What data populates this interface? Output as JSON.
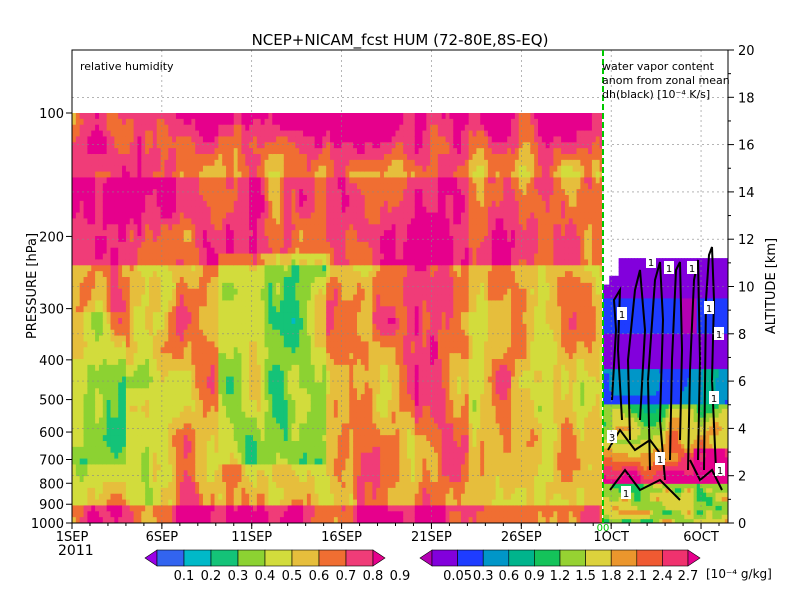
{
  "chart_data": {
    "type": "heatmap",
    "title": "NCEP+NICAM_fcst HUM (72-80E,8S-EQ)",
    "left_panel": {
      "label": "relative humidity",
      "xlabel_year": "2011",
      "x_ticks": [
        "1SEP",
        "6SEP",
        "11SEP",
        "16SEP",
        "21SEP",
        "26SEP",
        "1OCT"
      ],
      "y_ticks_pressure": [
        "100",
        "200",
        "300",
        "400",
        "500",
        "600",
        "700",
        "800",
        "900",
        "1000"
      ],
      "ylabel": "PRESSURE [hPa]",
      "pressure_range": [
        1000,
        100
      ],
      "levels": [
        0.1,
        0.2,
        0.3,
        0.4,
        0.5,
        0.6,
        0.7,
        0.8,
        0.9
      ],
      "level_labels": [
        "0.1",
        "0.2",
        "0.3",
        "0.4",
        "0.5",
        "0.6",
        "0.7",
        "0.8",
        "0.9"
      ],
      "colors": [
        "#9a00e6",
        "#3264f0",
        "#00b9c8",
        "#14c378",
        "#8cd232",
        "#d2dc3c",
        "#e6be3c",
        "#f06e32",
        "#f03c78",
        "#e6008c"
      ]
    },
    "right_panel": {
      "label_lines": [
        "water vapor content",
        "anom from zonal mean",
        "dh(black) [10⁻⁴ K/s]"
      ],
      "x_ticks": [
        "1OCT",
        "6OCT"
      ],
      "y_ticks_altitude": [
        "0",
        "2",
        "4",
        "6",
        "8",
        "10",
        "12",
        "14",
        "16",
        "18",
        "20"
      ],
      "ylabel": "ALTITUDE [km]",
      "altitude_range": [
        0,
        20
      ],
      "levels": [
        0.05,
        0.3,
        0.6,
        0.9,
        1.2,
        1.5,
        1.8,
        2.1,
        2.4,
        2.7
      ],
      "level_labels": [
        "0.05",
        "0.3",
        "0.6",
        "0.9",
        "1.2",
        "1.5",
        "1.8",
        "2.1",
        "2.4",
        "2.7"
      ],
      "unit": "[10⁻⁴ g/kg]",
      "colors": [
        "#b400b4",
        "#8200dc",
        "#1e3cff",
        "#0096c8",
        "#00b48c",
        "#14c35a",
        "#96d232",
        "#dcd23c",
        "#eb962d",
        "#f05a32",
        "#f0326e",
        "#e6008c"
      ],
      "contour_labels": [
        "1",
        "1",
        "1",
        "1",
        "1",
        "1",
        "3",
        "1",
        "1",
        "1",
        "1"
      ]
    },
    "markers": [
      "00"
    ]
  }
}
